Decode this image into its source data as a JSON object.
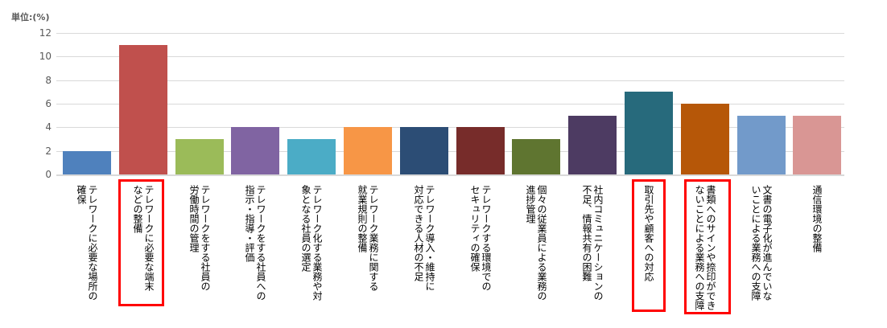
{
  "chart_data": {
    "type": "bar",
    "title": "",
    "unit_label": "単位:(%)",
    "xlabel": "",
    "ylabel": "単位:(%)",
    "ylim": [
      0,
      12
    ],
    "yticks": [
      "12",
      "10",
      "8",
      "6",
      "4",
      "2",
      "0"
    ],
    "grid": true,
    "legend": "none",
    "categories": [
      "テレワークに必要な場所の\n確保",
      "テレワークに必要な端末\nなどの整備",
      "テレワークをする社員の\n労働時間の管理",
      "テレワークをする社員への\n指示・指導・評価",
      "テレワーク化する業務や対\n象となる社員の選定",
      "テレワーク業務に関する\n就業規則の整備",
      "テレワーク導入・維持に\n対応できる人材の不足",
      "テレワークする環境での\nセキュリティの確保",
      "個々の従業員による業務の\n進捗管理",
      "社内コミュニケーションの\n不足、情報共有の困難",
      "取引先や顧客への対応",
      "書類へのサインや捺印ができ\nないことによる業務への支障",
      "文書の電子化が進んでいな\nいことによる業務への支障",
      "通信環境の整備"
    ],
    "values": [
      2,
      11,
      3,
      4,
      3,
      4,
      4,
      4,
      3,
      5,
      7,
      6,
      5,
      5
    ],
    "colors": [
      "#4f81bd",
      "#c0504d",
      "#9bbb59",
      "#8064a2",
      "#4bacc6",
      "#f79646",
      "#2c4d75",
      "#772c2a",
      "#5f7530",
      "#4d3b62",
      "#276a7c",
      "#b65708",
      "#729aca",
      "#d99694"
    ],
    "highlighted_categories": [
      1,
      10,
      11
    ],
    "highlight_color": "#ff0000"
  }
}
